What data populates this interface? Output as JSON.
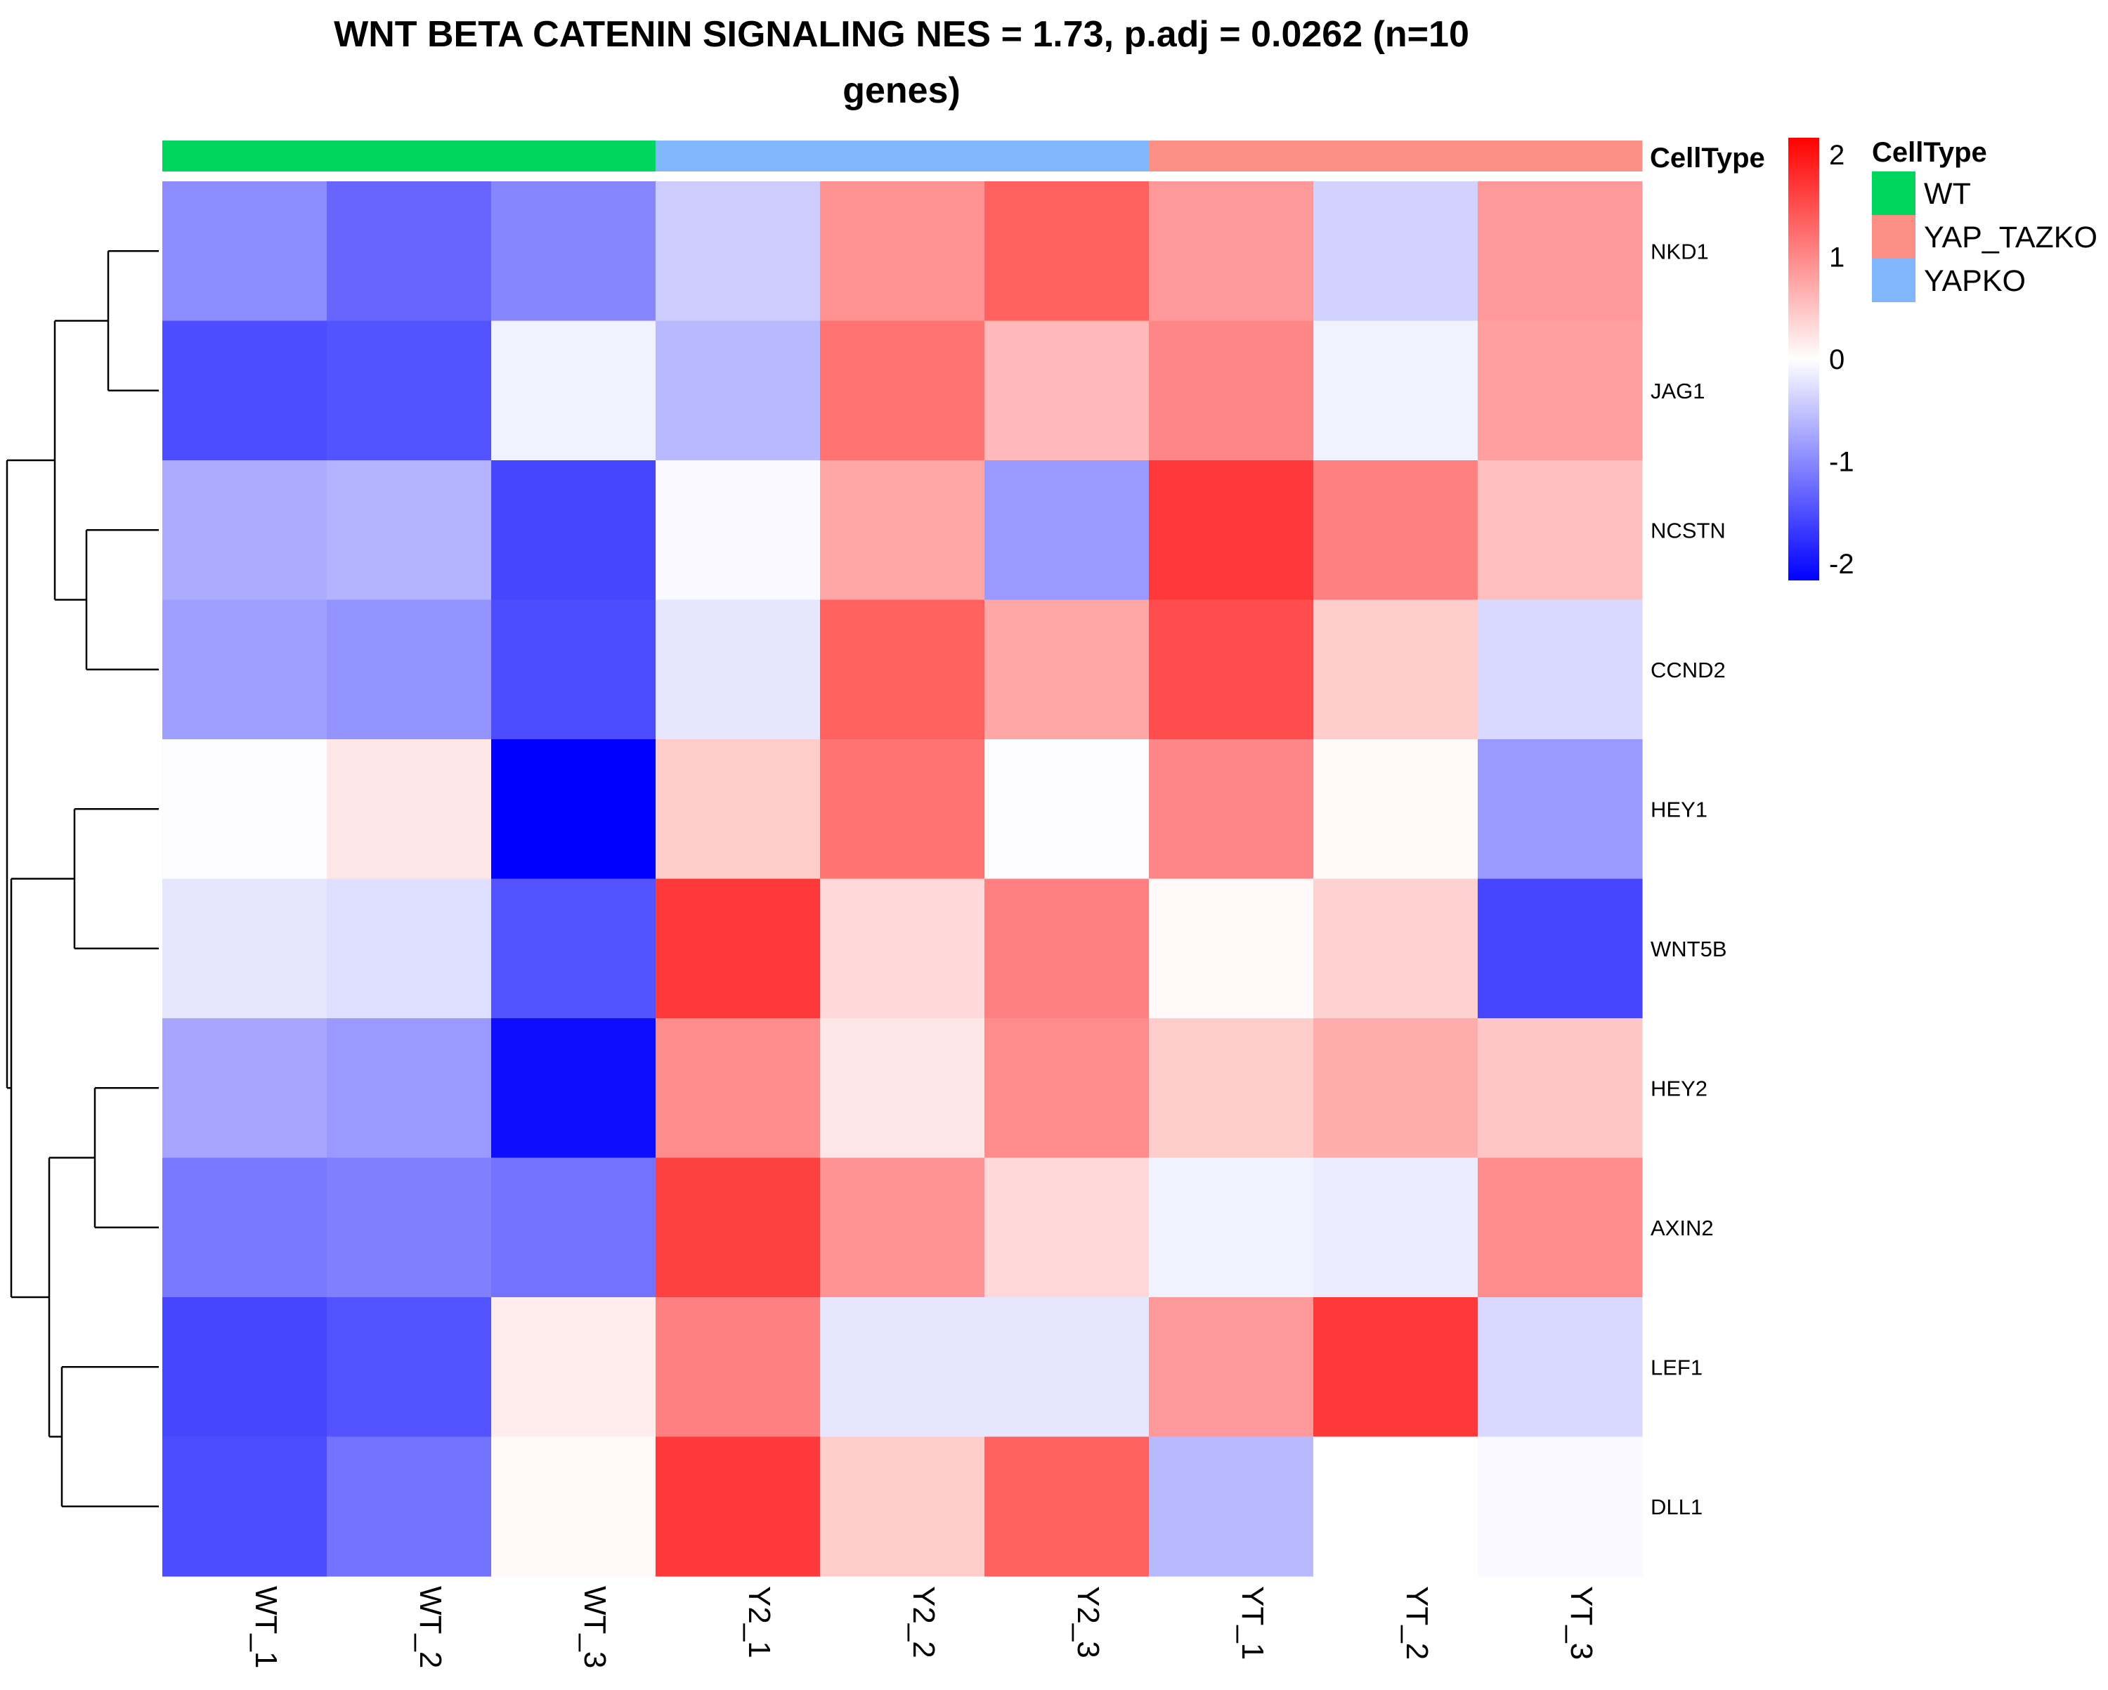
{
  "chart_data": {
    "type": "heatmap",
    "title_lines": [
      "WNT BETA CATENIN SIGNALING NES = 1.73, p.adj = 0.0262 (n=10",
      "genes)"
    ],
    "columns": [
      "WT_1",
      "WT_2",
      "WT_3",
      "Y2_1",
      "Y2_2",
      "Y2_3",
      "YT_1",
      "YT_2",
      "YT_3"
    ],
    "rows": [
      "NKD1",
      "JAG1",
      "NCSTN",
      "CCND2",
      "HEY1",
      "WNT5B",
      "HEY2",
      "AXIN2",
      "LEF1",
      "DLL1"
    ],
    "values": [
      [
        -0.9,
        -1.2,
        -0.95,
        -0.4,
        0.85,
        1.25,
        0.8,
        -0.35,
        0.8
      ],
      [
        -1.4,
        -1.35,
        -0.1,
        -0.55,
        1.1,
        0.55,
        0.95,
        -0.1,
        0.75
      ],
      [
        -0.65,
        -0.6,
        -1.45,
        -0.05,
        0.7,
        -0.8,
        1.55,
        1.0,
        0.5
      ],
      [
        -0.75,
        -0.85,
        -1.4,
        -0.2,
        1.25,
        0.7,
        1.4,
        0.4,
        -0.3
      ],
      [
        -0.02,
        0.2,
        -2.0,
        0.4,
        1.1,
        -0.02,
        0.95,
        0.05,
        -0.8
      ],
      [
        -0.2,
        -0.25,
        -1.35,
        1.55,
        0.3,
        1.0,
        0.05,
        0.35,
        -1.45
      ],
      [
        -0.7,
        -0.8,
        -1.9,
        0.9,
        0.2,
        0.9,
        0.4,
        0.65,
        0.45
      ],
      [
        -1.05,
        -1.0,
        -1.1,
        1.5,
        0.85,
        0.3,
        -0.1,
        -0.15,
        0.9
      ],
      [
        -1.45,
        -1.35,
        0.15,
        1.0,
        -0.2,
        -0.2,
        0.8,
        1.55,
        -0.3
      ],
      [
        -1.4,
        -1.1,
        0.05,
        1.55,
        0.4,
        1.25,
        -0.55,
        0.0,
        -0.05
      ]
    ],
    "color_scale": {
      "min": -2,
      "max": 2,
      "low_color": "#0000ff",
      "mid_color": "#ffffff",
      "high_color": "#ff0000",
      "ticks": [
        2,
        1,
        0,
        -1,
        -2
      ]
    },
    "annotation": {
      "name": "CellType",
      "column_groups": [
        "WT",
        "WT",
        "WT",
        "YAPKO",
        "YAPKO",
        "YAPKO",
        "YAP_TAZKO",
        "YAP_TAZKO",
        "YAP_TAZKO"
      ],
      "legend": [
        {
          "label": "WT",
          "color": "#00d65e"
        },
        {
          "label": "YAP_TAZKO",
          "color": "#fc8f85"
        },
        {
          "label": "YAPKO",
          "color": "#80b6fc"
        }
      ]
    },
    "row_dendrogram": true,
    "grid": false,
    "legend_position": "right"
  }
}
